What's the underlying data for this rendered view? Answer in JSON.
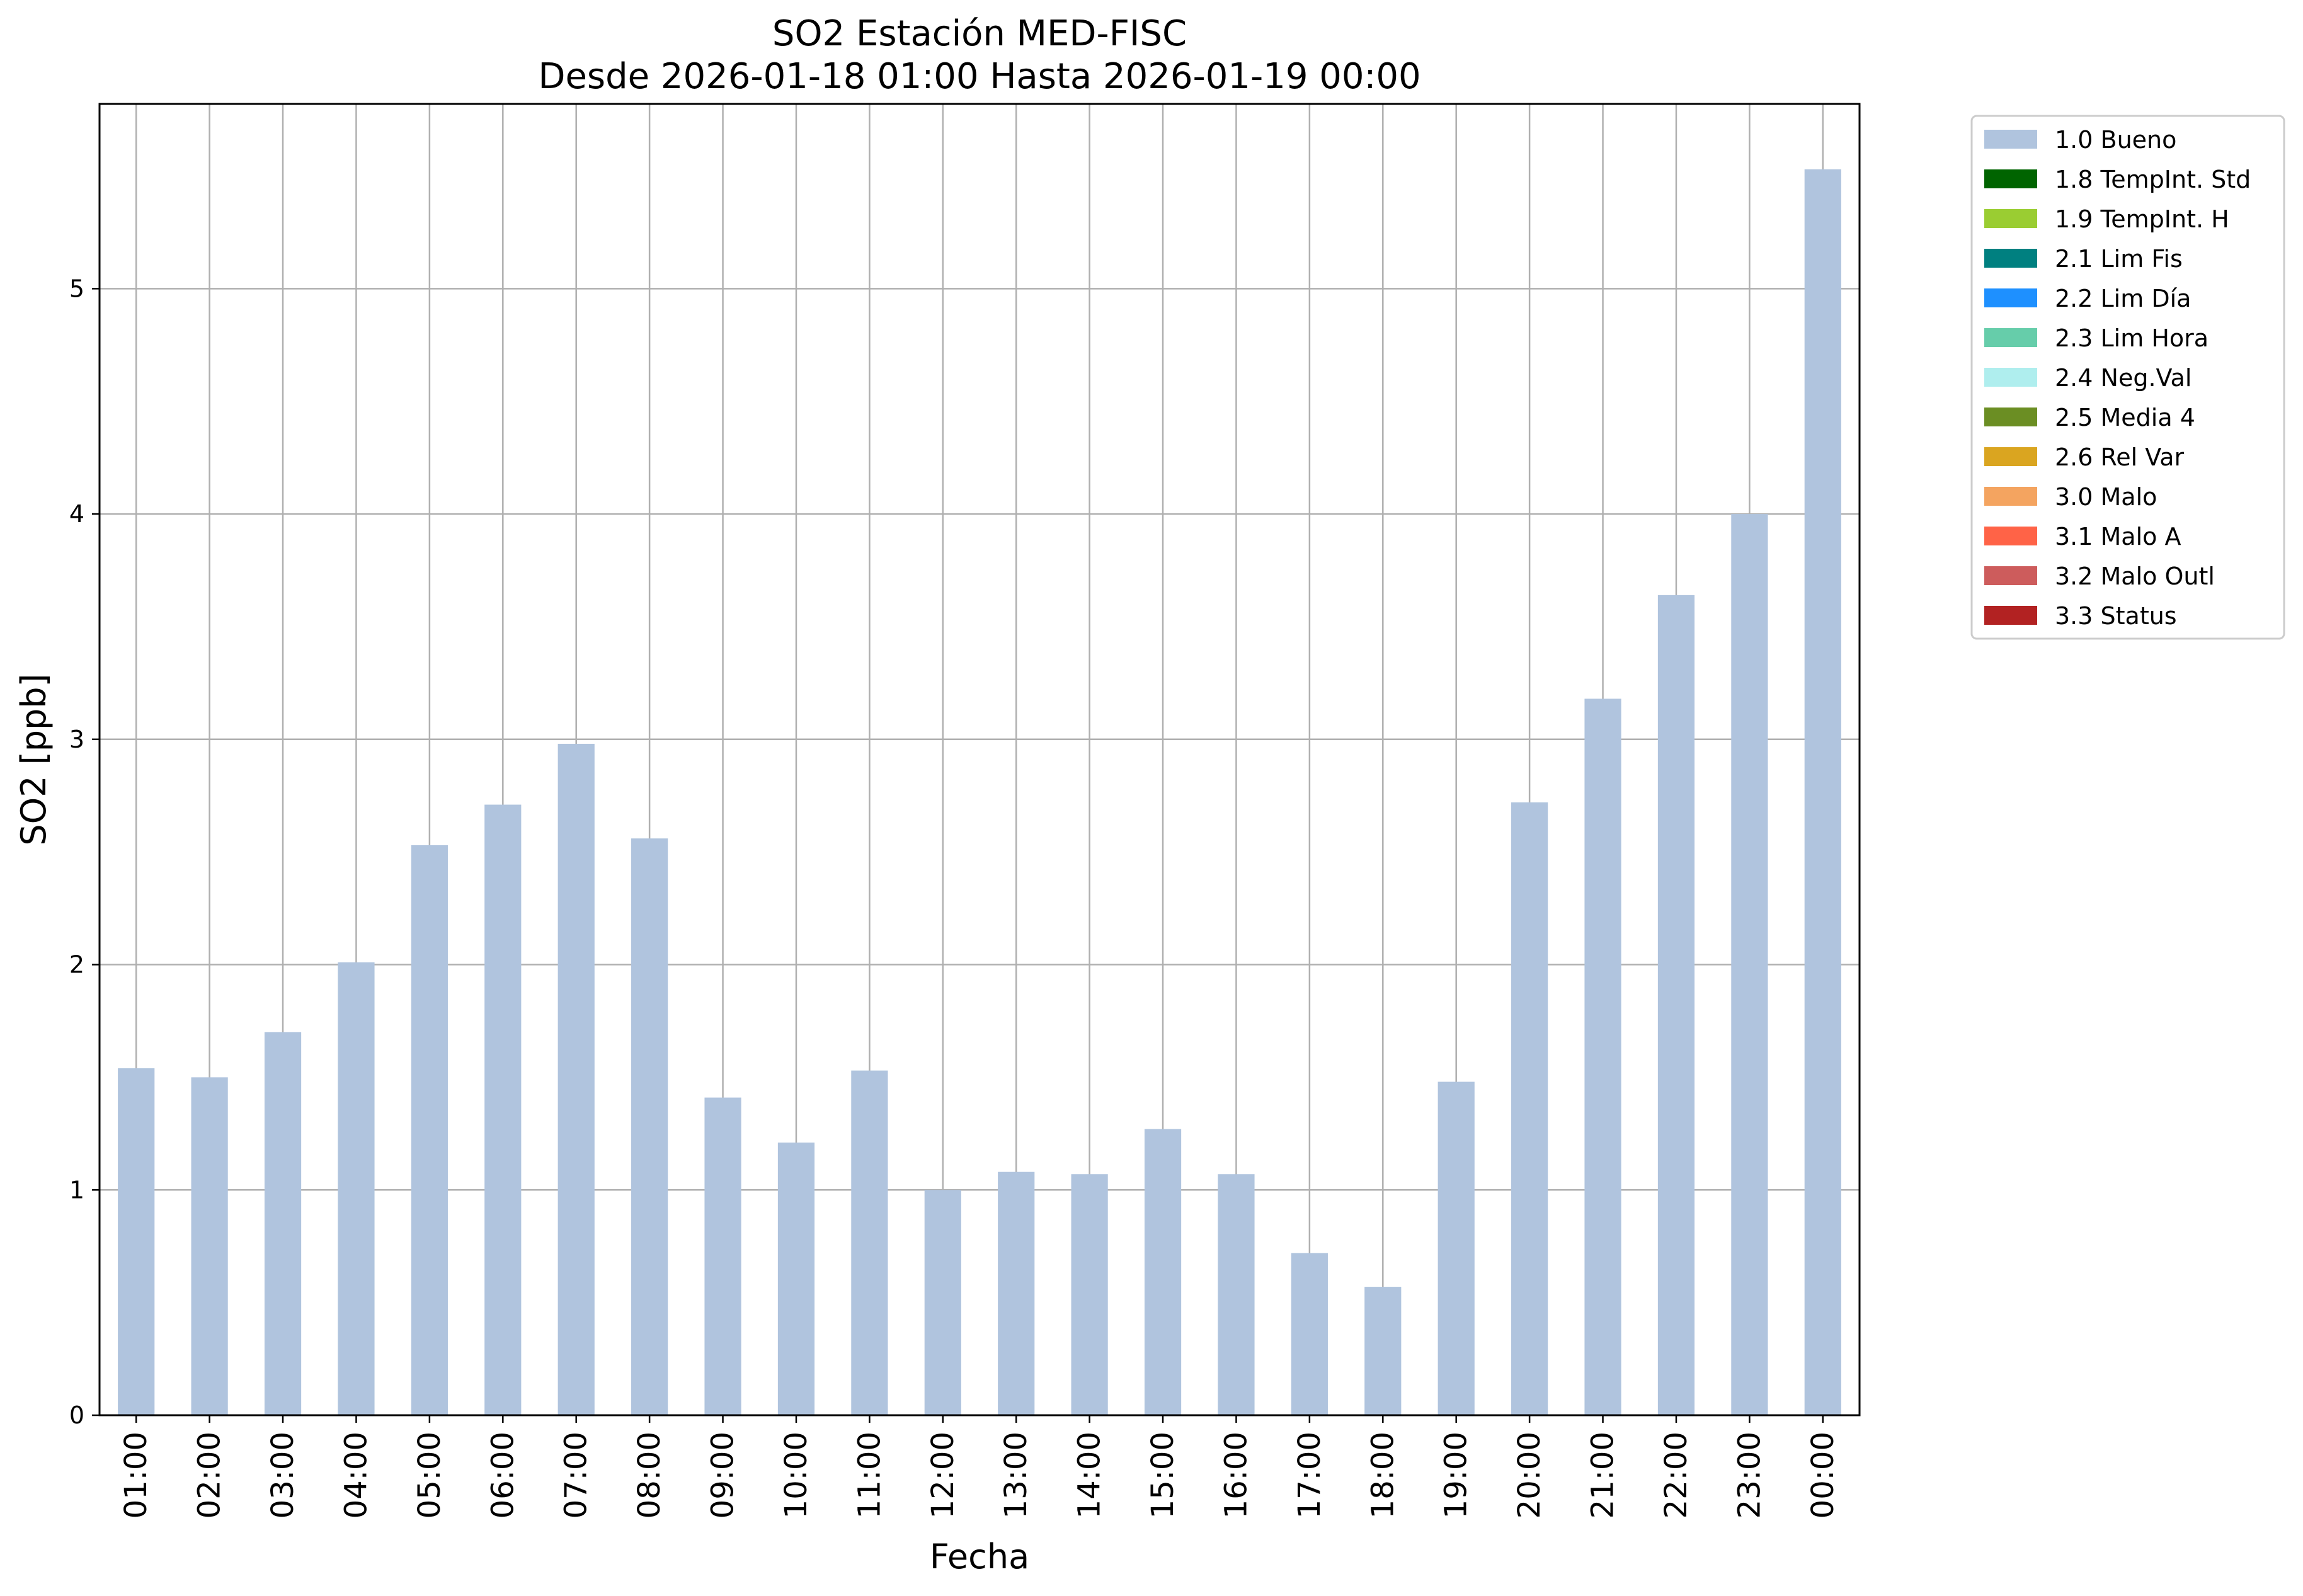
{
  "chart_data": {
    "type": "bar",
    "title": "SO2 Estación MED-FISC",
    "subtitle": "Desde 2026-01-18 01:00 Hasta 2026-01-19 00:00",
    "xlabel": "Fecha",
    "ylabel": "SO2 [ppb]",
    "ylim": [
      0,
      5.82
    ],
    "yticks": [
      0,
      1,
      2,
      3,
      4,
      5
    ],
    "grid": true,
    "legend_position": "outside-right",
    "categories": [
      "01:00",
      "02:00",
      "03:00",
      "04:00",
      "05:00",
      "06:00",
      "07:00",
      "08:00",
      "09:00",
      "10:00",
      "11:00",
      "12:00",
      "13:00",
      "14:00",
      "15:00",
      "16:00",
      "17:00",
      "18:00",
      "19:00",
      "20:00",
      "21:00",
      "22:00",
      "23:00",
      "00:00"
    ],
    "series": [
      {
        "name": "1.0 Bueno",
        "color": "#b0c4de",
        "values": [
          1.54,
          1.5,
          1.7,
          2.01,
          2.53,
          2.71,
          2.98,
          2.56,
          1.41,
          1.21,
          1.53,
          1.0,
          1.08,
          1.07,
          1.27,
          1.07,
          0.72,
          0.57,
          1.48,
          2.72,
          3.18,
          3.64,
          4.0,
          5.53
        ]
      }
    ],
    "legend": [
      {
        "label": "1.0 Bueno",
        "color": "#b0c4de"
      },
      {
        "label": "1.8 TempInt. Std",
        "color": "#006400"
      },
      {
        "label": "1.9 TempInt. H",
        "color": "#9acd32"
      },
      {
        "label": "2.1 Lim Fis",
        "color": "#008080"
      },
      {
        "label": "2.2 Lim Día",
        "color": "#1e90ff"
      },
      {
        "label": "2.3 Lim Hora",
        "color": "#66cdaa"
      },
      {
        "label": "2.4 Neg.Val",
        "color": "#afeeee"
      },
      {
        "label": "2.5 Media 4",
        "color": "#6b8e23"
      },
      {
        "label": "2.6 Rel Var",
        "color": "#daa520"
      },
      {
        "label": "3.0 Malo",
        "color": "#f4a460"
      },
      {
        "label": "3.1 Malo A",
        "color": "#ff6347"
      },
      {
        "label": "3.2 Malo Outl",
        "color": "#cd5c5c"
      },
      {
        "label": "3.3 Status",
        "color": "#b22222"
      }
    ]
  }
}
